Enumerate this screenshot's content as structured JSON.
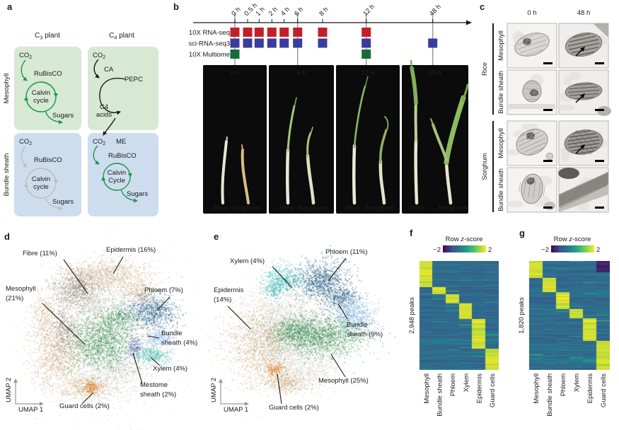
{
  "figure": {
    "background": "#ffffff"
  },
  "panel_a": {
    "label": "a",
    "c3_title": {
      "pre": "C",
      "sub": "3",
      "post": " plant"
    },
    "c4_title": {
      "pre": "C",
      "sub": "4",
      "post": " plant"
    },
    "row_labels": [
      "Mesophyll",
      "Bundle sheath"
    ],
    "colors": {
      "mesophyll_box": "#d7e8d3",
      "bundle_box": "#cdddee",
      "active_green": "#1a9850",
      "inactive_gray": "#bdbdbd",
      "black": "#1a1a1a"
    },
    "c3_mesophyll": {
      "co2_pre": "CO",
      "co2_sub": "2",
      "enzyme": "RuBisCO",
      "cycle_line1": "Calvin",
      "cycle_line2": "cycle",
      "product": "Sugars"
    },
    "c4_mesophyll": {
      "co2_pre": "CO",
      "co2_sub": "2",
      "enzyme": "CA",
      "enzyme2": "PEPC",
      "acids_line1": "C4",
      "acids_line2": "acids"
    },
    "c3_bundle": {
      "co2_pre": "CO",
      "co2_sub": "2",
      "enzyme": "RuBisCO",
      "cycle_line1": "Calvin",
      "cycle_line2": "cycle",
      "product": "Sugars"
    },
    "c4_bundle": {
      "co2_pre": "CO",
      "co2_sub": "2",
      "enzyme_me": "ME",
      "enzyme": "RuBisCO",
      "cycle_line1": "Calvin",
      "cycle_line2": "Cycle",
      "product": "Sugars"
    }
  },
  "panel_b": {
    "label": "b",
    "assays": [
      {
        "name": "10X RNA-seq",
        "color": "#c22026",
        "times": [
          0,
          0.5,
          1,
          2,
          4,
          6,
          8,
          12
        ]
      },
      {
        "name": "sci-RNA-seq3",
        "color": "#3a3b9c",
        "times": [
          0,
          0.5,
          1,
          2,
          4,
          6,
          8,
          12,
          48
        ]
      },
      {
        "name": "10X Multiome",
        "color": "#156c38",
        "times": [
          0,
          12
        ]
      }
    ],
    "timepoints": [
      {
        "t": 0,
        "label": "0 h"
      },
      {
        "t": 0.5,
        "label": "0.5 h"
      },
      {
        "t": 1,
        "label": "1 h"
      },
      {
        "t": 2,
        "label": "2 h"
      },
      {
        "t": 4,
        "label": "4 h"
      },
      {
        "t": 6,
        "label": "6 h"
      },
      {
        "t": 8,
        "label": "8 h"
      },
      {
        "t": 12,
        "label": "12 h"
      },
      {
        "t": 48,
        "label": "48 h"
      }
    ],
    "highlight_times": [
      0,
      6,
      12,
      48
    ],
    "photos": [
      {
        "time": "0 h",
        "left": "Rice",
        "right": "Sorghum"
      },
      {
        "time": "6 h",
        "left": "Rice",
        "right": "Sorghum"
      },
      {
        "time": "12 h",
        "left": "Rice",
        "right": "Sorghum"
      },
      {
        "time": "48 h",
        "left": "Rice",
        "right": "Sorghum"
      }
    ]
  },
  "panel_c": {
    "label": "c",
    "col_headers": [
      "0 h",
      "48 h"
    ],
    "groups": [
      {
        "name": "Rice",
        "rows": [
          "Mesophyll",
          "Bundle sheath"
        ]
      },
      {
        "name": "Sorghum",
        "rows": [
          "Mesophyll",
          "Bundle sheath"
        ]
      }
    ]
  },
  "panel_d": {
    "label": "d",
    "xlabel": "UMAP 1",
    "ylabel": "UMAP 2"
  },
  "panel_e": {
    "label": "e",
    "xlabel": "UMAP 1",
    "ylabel": "UMAP 2"
  },
  "panel_f": {
    "label": "f",
    "peaks": "2,948 peaks",
    "colorbar": {
      "pre": "Row ",
      "italic": "z",
      "post": "-score",
      "min": "−2",
      "max": "2"
    }
  },
  "panel_g": {
    "label": "g",
    "peaks": "1,820 peaks",
    "colorbar": {
      "pre": "Row ",
      "italic": "z",
      "post": "-score",
      "min": "−2",
      "max": "2"
    }
  },
  "chart_data": [
    {
      "id": "d",
      "type": "scatter",
      "xlabel": "UMAP 1",
      "ylabel": "UMAP 2",
      "clusters": [
        {
          "name": "Fibre",
          "pct": 11,
          "color": "#9b8c80"
        },
        {
          "name": "Epidermis",
          "pct": 16,
          "color": "#d2b189"
        },
        {
          "name": "Mesophyll",
          "pct": 21,
          "color": "#3a8f51"
        },
        {
          "name": "Phloem",
          "pct": 7,
          "color": "#31688e"
        },
        {
          "name": "Bundle sheath",
          "pct": 4,
          "color": "#8fb8e8"
        },
        {
          "name": "Xylem",
          "pct": 4,
          "color": "#38b6b0"
        },
        {
          "name": "Mestome sheath",
          "pct": 2,
          "color": "#4d5ab5"
        },
        {
          "name": "Guard cells",
          "pct": 2,
          "color": "#d9822b"
        }
      ]
    },
    {
      "id": "e",
      "type": "scatter",
      "xlabel": "UMAP 1",
      "ylabel": "UMAP 2",
      "clusters": [
        {
          "name": "Xylem",
          "pct": 4,
          "color": "#38b6b0"
        },
        {
          "name": "Phloem",
          "pct": 11,
          "color": "#2c6187"
        },
        {
          "name": "Epidermis",
          "pct": 14,
          "color": "#d2b189"
        },
        {
          "name": "Bundle sheath",
          "pct": 9,
          "color": "#8fb8e8"
        },
        {
          "name": "Mesophyll",
          "pct": 25,
          "color": "#3a8f51"
        },
        {
          "name": "Guard cells",
          "pct": 2,
          "color": "#d9822b"
        }
      ]
    },
    {
      "id": "f",
      "type": "heatmap",
      "rows_label": "2,948 peaks",
      "columns": [
        "Mesophyll",
        "Bundle sheath",
        "Phloem",
        "Xylem",
        "Epidermis",
        "Guard cells"
      ],
      "colorbar": {
        "title": "Row z-score",
        "min": -2,
        "max": 2,
        "palette": "viridis"
      },
      "diagonal_blocks": [
        [
          0,
          0.24
        ],
        [
          0.24,
          0.3
        ],
        [
          0.3,
          0.385
        ],
        [
          0.385,
          0.53
        ],
        [
          0.53,
          0.8
        ],
        [
          0.8,
          1.0
        ]
      ]
    },
    {
      "id": "g",
      "type": "heatmap",
      "rows_label": "1,820 peaks",
      "columns": [
        "Mesophyll",
        "Bundle sheath",
        "Phloem",
        "Xylem",
        "Epidermis",
        "Guard cells"
      ],
      "colorbar": {
        "title": "Row z-score",
        "min": -2,
        "max": 2,
        "palette": "viridis"
      },
      "diagonal_blocks": [
        [
          0,
          0.15
        ],
        [
          0.15,
          0.28
        ],
        [
          0.28,
          0.44
        ],
        [
          0.44,
          0.52
        ],
        [
          0.52,
          0.73
        ],
        [
          0.73,
          1.0
        ]
      ]
    }
  ]
}
